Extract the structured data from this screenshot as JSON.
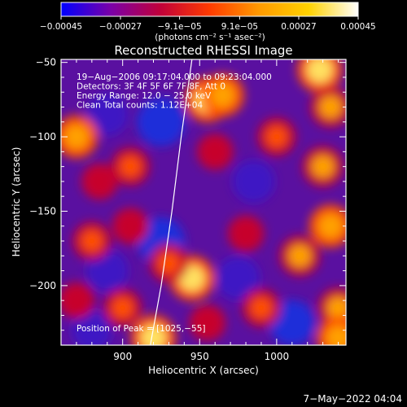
{
  "chart_data": {
    "type": "heatmap",
    "title": "Reconstructed RHESSI Image",
    "xlabel": "Heliocentric X (arcsec)",
    "ylabel": "Heliocentric Y (arcsec)",
    "xlim": [
      860,
      1045
    ],
    "ylim": [
      -240,
      -48
    ],
    "xticks": [
      900,
      950,
      1000
    ],
    "xtick_labels": [
      "900",
      "950",
      "1000"
    ],
    "yticks": [
      -50,
      -100,
      -150,
      -200
    ],
    "ytick_labels": [
      "−50",
      "−100",
      "−150",
      "−200"
    ],
    "colorbar": {
      "min": -0.00045,
      "max": 0.00045,
      "ticks": [
        -0.00045,
        -0.00027,
        -9.1e-05,
        9.1e-05,
        0.00027,
        0.00045
      ],
      "tick_labels": [
        "−0.00045",
        "−0.00027",
        "−9.1e−05",
        "9.1e−05",
        "0.00027",
        "0.00045"
      ],
      "unit_label": "(photons cm⁻² s⁻¹ asec⁻²)",
      "colors": [
        "#0000ff",
        "#7a00a8",
        "#c0003a",
        "#ff3b00",
        "#ff9a00",
        "#ffd200",
        "#ffffff"
      ]
    },
    "annotations": [
      "19−Aug−2006 09:17:04.000 to 09:23:04.000",
      "Detectors: 3F 4F 5F 6F 7F 8F, Att 0",
      "Energy Range: 12.0 − 25.0 keV",
      "Clean    Total counts: 1.12E+04"
    ],
    "peak_label": "Position of Peak = [1025,−55]",
    "peak": [
      1025,
      -55
    ],
    "limb_curve": [
      [
        945,
        -48
      ],
      [
        938,
        -100
      ],
      [
        932,
        -150
      ],
      [
        925,
        -200
      ],
      [
        918,
        -240
      ]
    ],
    "intensity_blobs": [
      {
        "x": 955,
        "y": -75,
        "v": 1.0
      },
      {
        "x": 965,
        "y": -72,
        "v": 0.9
      },
      {
        "x": 1028,
        "y": -55,
        "v": 1.0
      },
      {
        "x": 1035,
        "y": -80,
        "v": 0.8
      },
      {
        "x": 870,
        "y": -100,
        "v": 0.9
      },
      {
        "x": 885,
        "y": -130,
        "v": 0.6
      },
      {
        "x": 905,
        "y": -120,
        "v": 0.7
      },
      {
        "x": 960,
        "y": -110,
        "v": 0.6
      },
      {
        "x": 1000,
        "y": -100,
        "v": 0.7
      },
      {
        "x": 1030,
        "y": -120,
        "v": 0.8
      },
      {
        "x": 880,
        "y": -170,
        "v": 0.7
      },
      {
        "x": 905,
        "y": -160,
        "v": 0.6
      },
      {
        "x": 945,
        "y": -195,
        "v": 1.0
      },
      {
        "x": 930,
        "y": -185,
        "v": 0.7
      },
      {
        "x": 980,
        "y": -165,
        "v": 0.6
      },
      {
        "x": 1015,
        "y": -180,
        "v": 0.8
      },
      {
        "x": 1035,
        "y": -160,
        "v": 0.9
      },
      {
        "x": 870,
        "y": -210,
        "v": 0.6
      },
      {
        "x": 900,
        "y": -215,
        "v": 0.7
      },
      {
        "x": 920,
        "y": -235,
        "v": 1.0
      },
      {
        "x": 955,
        "y": -225,
        "v": 0.6
      },
      {
        "x": 990,
        "y": -215,
        "v": 0.7
      },
      {
        "x": 1040,
        "y": -215,
        "v": 0.8
      },
      {
        "x": 1040,
        "y": -235,
        "v": 0.9
      }
    ],
    "negative_blobs": [
      {
        "x": 925,
        "y": -90,
        "v": -1.0
      },
      {
        "x": 890,
        "y": -85,
        "v": -0.6
      },
      {
        "x": 985,
        "y": -130,
        "v": -0.6
      },
      {
        "x": 925,
        "y": -170,
        "v": -0.9
      },
      {
        "x": 890,
        "y": -190,
        "v": -0.6
      },
      {
        "x": 975,
        "y": -195,
        "v": -0.7
      },
      {
        "x": 1010,
        "y": -225,
        "v": -0.8
      },
      {
        "x": 880,
        "y": -230,
        "v": -0.5
      }
    ]
  },
  "footer": {
    "date": "7−May−2022 04:04"
  }
}
